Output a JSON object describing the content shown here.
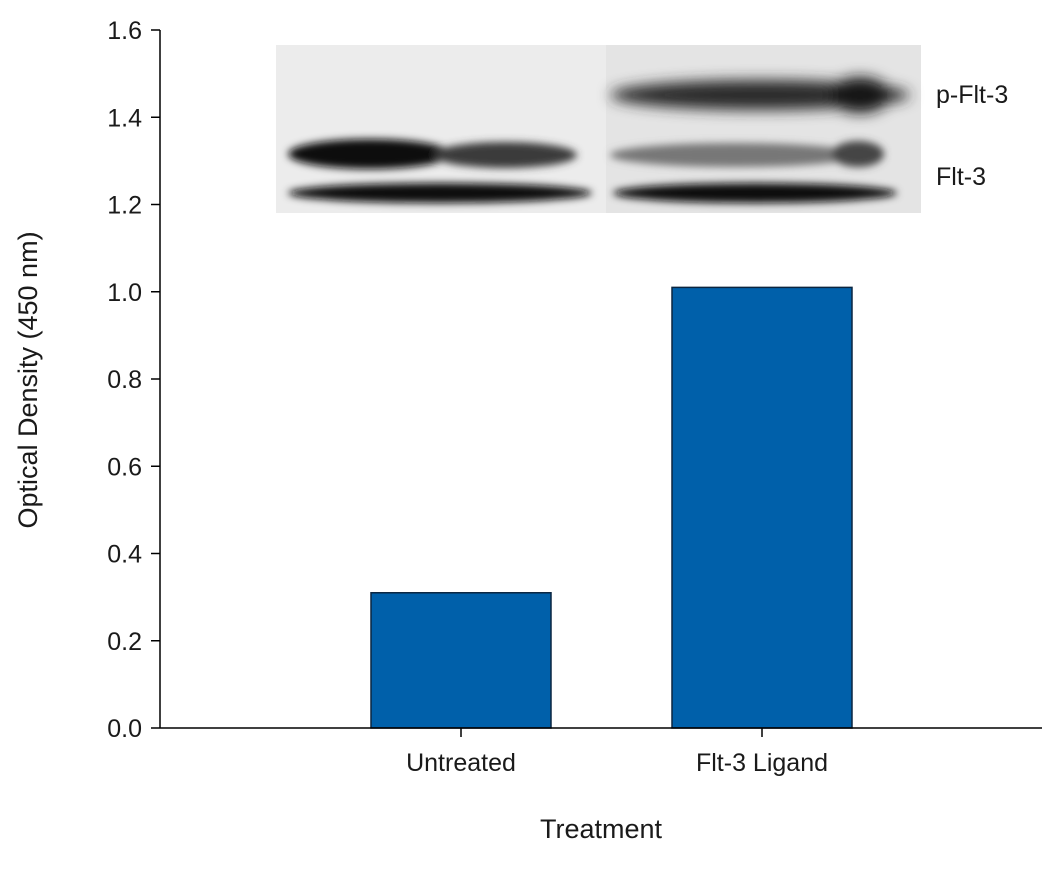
{
  "chart_data": {
    "type": "bar",
    "categories": [
      "Untreated",
      "Flt-3 Ligand"
    ],
    "values": [
      0.31,
      1.01
    ],
    "bar_color": "#0060aa",
    "xlabel": "Treatment",
    "ylabel": "Optical Density (450 nm)",
    "ylim": [
      0,
      1.6
    ],
    "yticks": [
      "0.0",
      "0.2",
      "0.4",
      "0.6",
      "0.8",
      "1.0",
      "1.2",
      "1.4",
      "1.6"
    ],
    "grid": false,
    "inset": {
      "type": "western-blot-image",
      "bands": [
        "p-Flt-3",
        "Flt-3"
      ]
    }
  }
}
